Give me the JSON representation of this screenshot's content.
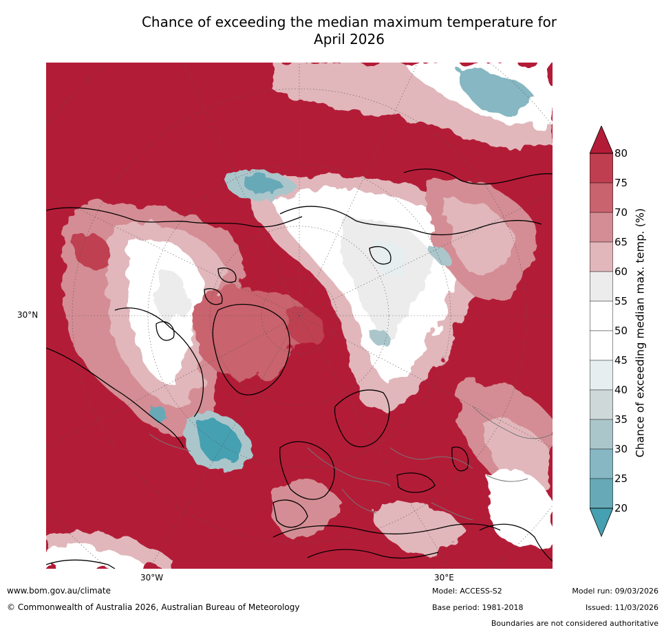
{
  "title_line1": "Chance of exceeding the median maximum temperature for",
  "title_line2": "April 2026",
  "map_labels": {
    "lat_30n": "30°N",
    "lon_30w": "30°W",
    "lon_30e": "30°E"
  },
  "colorbar": {
    "label": "Chance of exceeding median max. temp. (%)",
    "ticks": [
      "80",
      "75",
      "70",
      "65",
      "60",
      "55",
      "50",
      "45",
      "40",
      "35",
      "30",
      "25",
      "20"
    ],
    "levels": [
      {
        "range": "> 80",
        "color": "#b31c37"
      },
      {
        "range": "75-80",
        "color": "#bf3f51"
      },
      {
        "range": "70-75",
        "color": "#c9636e"
      },
      {
        "range": "65-70",
        "color": "#d48d94"
      },
      {
        "range": "60-65",
        "color": "#e1b7bb"
      },
      {
        "range": "55-60",
        "color": "#ececec"
      },
      {
        "range": "50-55",
        "color": "#ffffff"
      },
      {
        "range": "45-50",
        "color": "#ffffff"
      },
      {
        "range": "40-45",
        "color": "#e7eef0"
      },
      {
        "range": "35-40",
        "color": "#cfd8d9"
      },
      {
        "range": "30-35",
        "color": "#aac6cb"
      },
      {
        "range": "25-30",
        "color": "#86b7c2"
      },
      {
        "range": "20-25",
        "color": "#68a9b7"
      },
      {
        "range": "< 20",
        "color": "#45a0b1"
      }
    ]
  },
  "footer": {
    "url": "www.bom.gov.au/climate",
    "copyright": "© Commonwealth of Australia 2026, Australian Bureau of Meteorology",
    "model": "Model: ACCESS-S2",
    "base_period": "Base period: 1981-2018",
    "model_run": "Model run: 09/03/2026",
    "issued": "Issued: 11/03/2026",
    "disclaimer": "Boundaries are not considered authoritative"
  }
}
